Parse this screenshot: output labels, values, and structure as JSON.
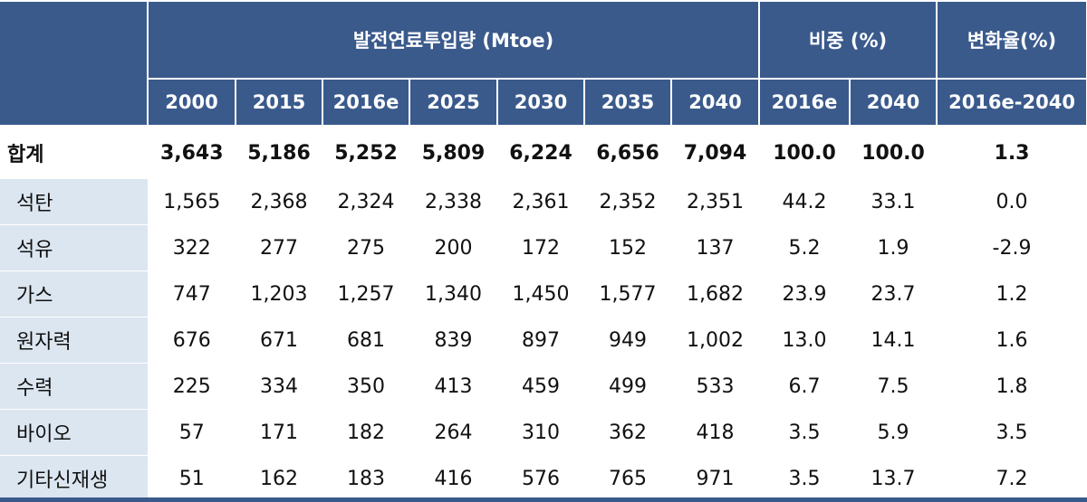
{
  "table": {
    "group_headers": [
      "발전연료투입량 (Mtoe)",
      "비중 (%)",
      "변화율(%)"
    ],
    "columns": [
      "2000",
      "2015",
      "2016e",
      "2025",
      "2030",
      "2035",
      "2040",
      "2016e",
      "2040",
      "2016e-2040"
    ],
    "rows": [
      {
        "label": "합계",
        "values": [
          "3,643",
          "5,186",
          "5,252",
          "5,809",
          "6,224",
          "6,656",
          "7,094",
          "100.0",
          "100.0",
          "1.3"
        ]
      },
      {
        "label": "석탄",
        "values": [
          "1,565",
          "2,368",
          "2,324",
          "2,338",
          "2,361",
          "2,352",
          "2,351",
          "44.2",
          "33.1",
          "0.0"
        ]
      },
      {
        "label": "석유",
        "values": [
          "322",
          "277",
          "275",
          "200",
          "172",
          "152",
          "137",
          "5.2",
          "1.9",
          "-2.9"
        ]
      },
      {
        "label": "가스",
        "values": [
          "747",
          "1,203",
          "1,257",
          "1,340",
          "1,450",
          "1,577",
          "1,682",
          "23.9",
          "23.7",
          "1.2"
        ]
      },
      {
        "label": "원자력",
        "values": [
          "676",
          "671",
          "681",
          "839",
          "897",
          "949",
          "1,002",
          "13.0",
          "14.1",
          "1.6"
        ]
      },
      {
        "label": "수력",
        "values": [
          "225",
          "334",
          "350",
          "413",
          "459",
          "499",
          "533",
          "6.7",
          "7.5",
          "1.8"
        ]
      },
      {
        "label": "바이오",
        "values": [
          "57",
          "171",
          "182",
          "264",
          "310",
          "362",
          "418",
          "3.5",
          "5.9",
          "3.5"
        ]
      },
      {
        "label": "기타신재생",
        "values": [
          "51",
          "162",
          "183",
          "416",
          "576",
          "765",
          "971",
          "3.5",
          "13.7",
          "7.2"
        ]
      }
    ]
  },
  "colors": {
    "header_bg": "#3a5a8c",
    "label_bg": "#dce6f1"
  }
}
